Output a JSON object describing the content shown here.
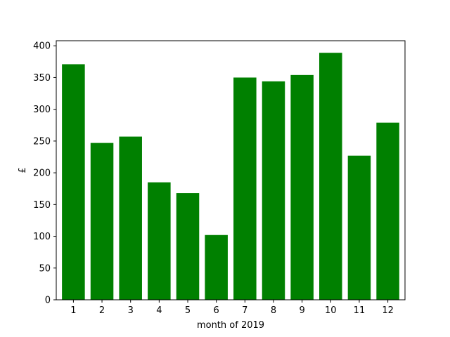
{
  "chart_data": {
    "type": "bar",
    "title": "",
    "xlabel": "month of 2019",
    "ylabel": "£",
    "categories": [
      "1",
      "2",
      "3",
      "4",
      "5",
      "6",
      "7",
      "8",
      "9",
      "10",
      "11",
      "12"
    ],
    "values": [
      371,
      247,
      257,
      185,
      168,
      102,
      350,
      344,
      354,
      389,
      227,
      279
    ],
    "ylim": [
      0,
      408
    ],
    "yticks": [
      0,
      50,
      100,
      150,
      200,
      250,
      300,
      350,
      400
    ],
    "bar_color": "#008000",
    "grid": false,
    "legend": "none"
  }
}
